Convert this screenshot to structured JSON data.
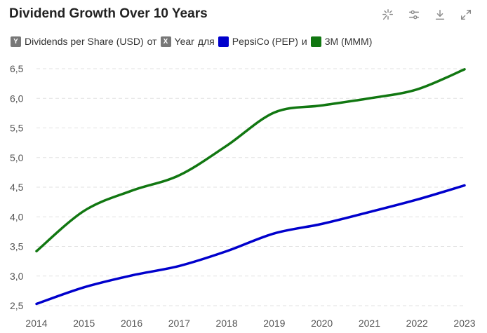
{
  "header": {
    "title": "Dividend Growth Over 10 Years",
    "tools": [
      {
        "name": "magic-icon"
      },
      {
        "name": "sliders-icon"
      },
      {
        "name": "download-icon"
      },
      {
        "name": "expand-icon"
      }
    ]
  },
  "legend": {
    "y_badge": "Y",
    "y_label": "Dividends per Share (USD)",
    "sep1": "от",
    "x_badge": "X",
    "x_label": "Year",
    "sep2": "для",
    "series1_label": "PepsiCo (PEP)",
    "sep3": "и",
    "series2_label": "3M (MMM)"
  },
  "chart_data": {
    "type": "line",
    "title": "Dividend Growth Over 10 Years",
    "xlabel": "Year",
    "ylabel": "Dividends per Share (USD)",
    "x": [
      2014,
      2015,
      2016,
      2017,
      2018,
      2019,
      2020,
      2021,
      2022,
      2023
    ],
    "ylim": [
      2.5,
      6.5
    ],
    "yticks": [
      "2,5",
      "3,0",
      "3,5",
      "4,0",
      "4,5",
      "5,0",
      "5,5",
      "6,0",
      "6,5"
    ],
    "ytick_values": [
      2.5,
      3.0,
      3.5,
      4.0,
      4.5,
      5.0,
      5.5,
      6.0,
      6.5
    ],
    "grid": true,
    "series": [
      {
        "name": "PepsiCo (PEP)",
        "color": "#0000cc",
        "values": [
          2.53,
          2.81,
          3.01,
          3.17,
          3.42,
          3.72,
          3.88,
          4.08,
          4.29,
          4.53
        ]
      },
      {
        "name": "3M (MMM)",
        "color": "#117711",
        "values": [
          3.42,
          4.1,
          4.44,
          4.7,
          5.2,
          5.76,
          5.88,
          6.0,
          6.15,
          6.49
        ]
      }
    ]
  }
}
